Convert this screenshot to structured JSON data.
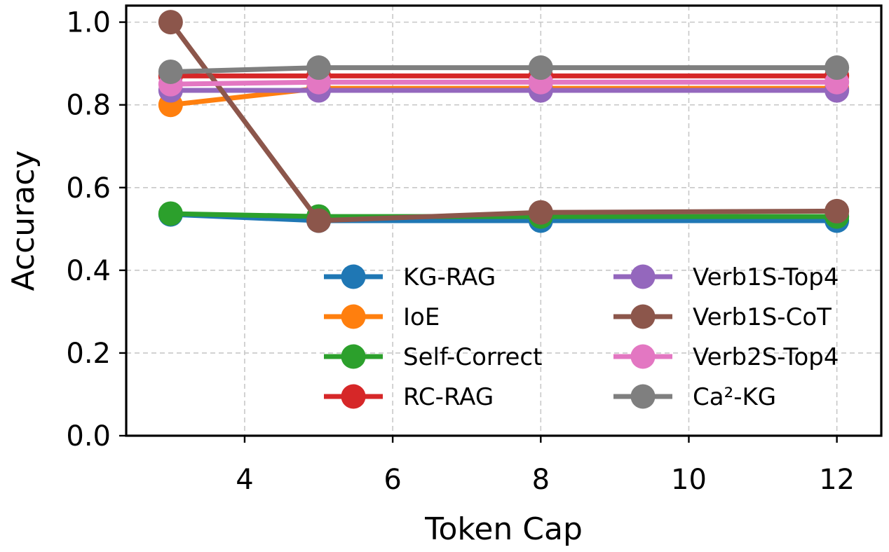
{
  "chart_data": {
    "type": "line",
    "title": "",
    "xlabel": "Token Cap",
    "ylabel": "Accuracy",
    "x": [
      3,
      5,
      8,
      12
    ],
    "xlim": [
      2.4,
      12.6
    ],
    "ylim": [
      0.0,
      1.04
    ],
    "xticks": [
      4,
      6,
      8,
      10,
      12
    ],
    "xtick_labels": [
      "4",
      "6",
      "8",
      "10",
      "12"
    ],
    "yticks": [
      0.0,
      0.2,
      0.4,
      0.6,
      0.8,
      1.0
    ],
    "ytick_labels": [
      "0.0",
      "0.2",
      "0.4",
      "0.6",
      "0.8",
      "1.0"
    ],
    "grid": true,
    "legend_position": "lower-right",
    "legend_columns": 2,
    "series": [
      {
        "name": "KG-RAG",
        "color": "#1f77b4",
        "values": [
          0.535,
          0.52,
          0.52,
          0.52
        ]
      },
      {
        "name": "IoE",
        "color": "#ff7f0e",
        "values": [
          0.8,
          0.84,
          0.84,
          0.84
        ]
      },
      {
        "name": "Self-Correct",
        "color": "#2ca02c",
        "values": [
          0.537,
          0.53,
          0.53,
          0.53
        ]
      },
      {
        "name": "RC-RAG",
        "color": "#d62728",
        "values": [
          0.87,
          0.87,
          0.87,
          0.87
        ]
      },
      {
        "name": "Verb1S-Top4",
        "color": "#9467bd",
        "values": [
          0.835,
          0.835,
          0.835,
          0.835
        ]
      },
      {
        "name": "Verb1S-CoT",
        "color": "#8c564b",
        "values": [
          1.0,
          0.52,
          0.54,
          0.543
        ]
      },
      {
        "name": "Verb2S-Top4",
        "color": "#e377c2",
        "values": [
          0.85,
          0.855,
          0.855,
          0.855
        ]
      },
      {
        "name": "Ca²-KG",
        "color": "#7f7f7f",
        "values": [
          0.88,
          0.89,
          0.89,
          0.89
        ]
      }
    ]
  }
}
